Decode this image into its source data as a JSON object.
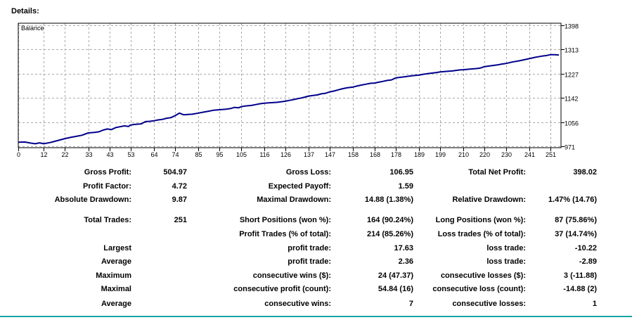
{
  "title": "Details:",
  "chart_data": {
    "type": "line",
    "title": "Balance",
    "ylim": [
      966,
      1405
    ],
    "xlim": [
      0,
      256
    ],
    "y_ticks": [
      971,
      1056,
      1142,
      1227,
      1313,
      1398
    ],
    "x_ticks": [
      0,
      12,
      22,
      33,
      43,
      53,
      64,
      74,
      85,
      95,
      105,
      116,
      126,
      137,
      147,
      158,
      168,
      178,
      189,
      199,
      210,
      220,
      230,
      241,
      251
    ],
    "grid": true,
    "series": [
      {
        "color": "#00008b",
        "x": [
          0,
          3,
          6,
          8,
          10,
          12,
          15,
          17,
          19,
          22,
          25,
          28,
          30,
          33,
          36,
          38,
          40,
          42,
          44,
          46,
          48,
          50,
          52,
          53,
          55,
          58,
          60,
          62,
          64,
          66,
          68,
          70,
          72,
          74,
          76,
          78,
          80,
          82,
          85,
          87,
          90,
          92,
          95,
          98,
          100,
          102,
          104,
          105,
          107,
          110,
          112,
          114,
          116,
          118,
          120,
          122,
          124,
          126,
          128,
          130,
          132,
          134,
          137,
          139,
          141,
          143,
          145,
          147,
          149,
          151,
          153,
          155,
          158,
          160,
          162,
          164,
          166,
          168,
          170,
          172,
          174,
          176,
          178,
          180,
          182,
          184,
          186,
          189,
          191,
          193,
          195,
          197,
          199,
          202,
          205,
          208,
          210,
          213,
          216,
          218,
          220,
          223,
          226,
          228,
          230,
          233,
          236,
          238,
          241,
          244,
          247,
          249,
          251,
          253,
          255
        ],
        "y": [
          985,
          986,
          982,
          980,
          983,
          980,
          984,
          988,
          992,
          998,
          1003,
          1007,
          1010,
          1018,
          1020,
          1022,
          1028,
          1032,
          1030,
          1037,
          1040,
          1043,
          1041,
          1046,
          1048,
          1050,
          1058,
          1059,
          1061,
          1064,
          1066,
          1070,
          1072,
          1079,
          1088,
          1082,
          1083,
          1084,
          1088,
          1091,
          1095,
          1098,
          1100,
          1102,
          1104,
          1108,
          1107,
          1110,
          1113,
          1115,
          1118,
          1121,
          1123,
          1124,
          1125,
          1126,
          1128,
          1130,
          1133,
          1136,
          1139,
          1142,
          1148,
          1150,
          1152,
          1156,
          1158,
          1163,
          1166,
          1170,
          1174,
          1177,
          1180,
          1184,
          1187,
          1190,
          1193,
          1194,
          1197,
          1200,
          1203,
          1205,
          1212,
          1214,
          1216,
          1218,
          1220,
          1222,
          1225,
          1227,
          1229,
          1231,
          1233,
          1235,
          1237,
          1240,
          1241,
          1243,
          1245,
          1247,
          1252,
          1255,
          1258,
          1261,
          1263,
          1268,
          1272,
          1275,
          1280,
          1285,
          1289,
          1291,
          1294,
          1294,
          1293
        ]
      }
    ]
  },
  "rows": [
    {
      "l1": "Gross Profit:",
      "v1": "504.97",
      "l2": "Gross Loss:",
      "v2": "106.95",
      "l3": "Total Net Profit:",
      "v3": "398.02"
    },
    {
      "l1": "Profit Factor:",
      "v1": "4.72",
      "l2": "Expected Payoff:",
      "v2": "1.59",
      "l3": "",
      "v3": ""
    },
    {
      "l1": "Absolute Drawdown:",
      "v1": "9.87",
      "l2": "Maximal Drawdown:",
      "v2": "14.88 (1.38%)",
      "l3": "Relative Drawdown:",
      "v3": "1.47% (14.76)"
    },
    {
      "l1": "Total Trades:",
      "v1": "251",
      "l2": "Short Positions (won %):",
      "v2": "164 (90.24%)",
      "l3": "Long Positions (won %):",
      "v3": "87 (75.86%)"
    },
    {
      "l1": "",
      "v1": "",
      "l2": "Profit Trades (% of total):",
      "v2": "214 (85.26%)",
      "l3": "Loss trades (% of total):",
      "v3": "37 (14.74%)"
    },
    {
      "l1": "Largest",
      "v1": "",
      "l2": "profit trade:",
      "v2": "17.63",
      "l3": "loss trade:",
      "v3": "-10.22"
    },
    {
      "l1": "Average",
      "v1": "",
      "l2": "profit trade:",
      "v2": "2.36",
      "l3": "loss trade:",
      "v3": "-2.89"
    },
    {
      "l1": "Maximum",
      "v1": "",
      "l2": "consecutive wins ($):",
      "v2": "24 (47.37)",
      "l3": "consecutive losses ($):",
      "v3": "3 (-11.88)"
    },
    {
      "l1": "Maximal",
      "v1": "",
      "l2": "consecutive profit (count):",
      "v2": "54.84 (16)",
      "l3": "consecutive loss (count):",
      "v3": "-14.88 (2)"
    },
    {
      "l1": "Average",
      "v1": "",
      "l2": "consecutive wins:",
      "v2": "7",
      "l3": "consecutive losses:",
      "v3": "1"
    }
  ]
}
